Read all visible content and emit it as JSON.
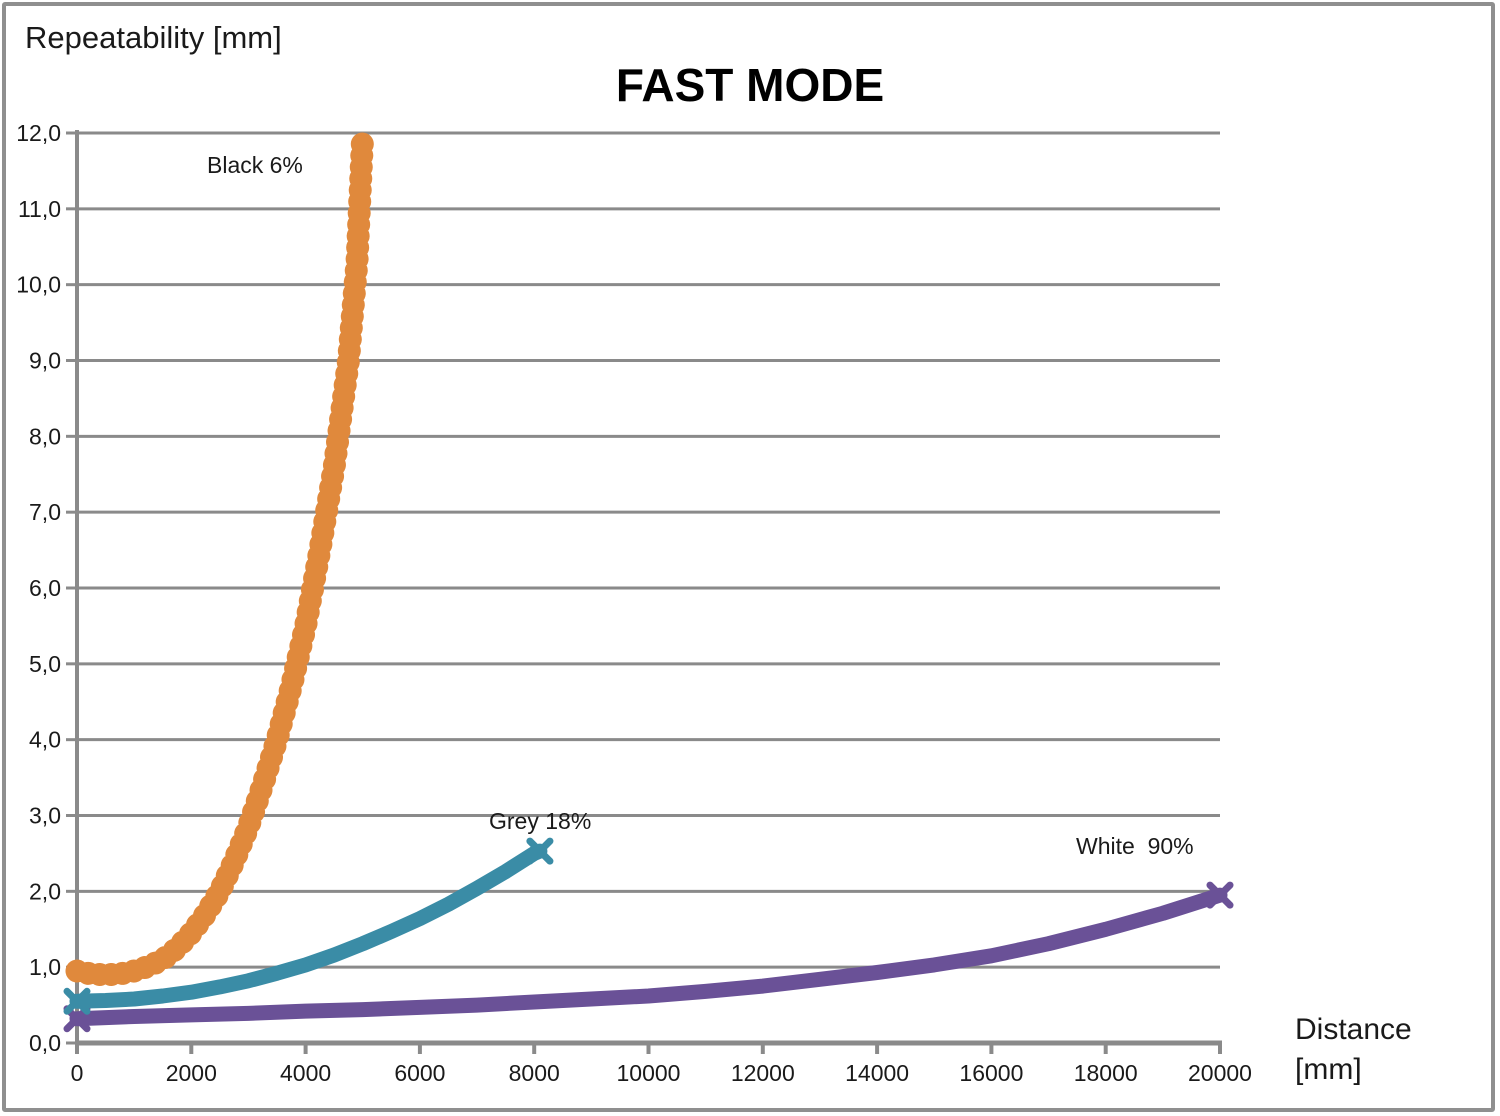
{
  "chart_data": {
    "type": "line",
    "title": "FAST MODE",
    "y_axis_title": "Repeatability [mm]",
    "x_axis_title_line1": "Distance",
    "x_axis_title_line2": "[mm]",
    "xlim": [
      0,
      20000
    ],
    "ylim": [
      0,
      12
    ],
    "x_ticks": [
      0,
      2000,
      4000,
      6000,
      8000,
      10000,
      12000,
      14000,
      16000,
      18000,
      20000
    ],
    "x_tick_labels": [
      "0",
      "2000",
      "4000",
      "6000",
      "8000",
      "10000",
      "12000",
      "14000",
      "16000",
      "18000",
      "20000"
    ],
    "y_ticks": [
      0,
      1,
      2,
      3,
      4,
      5,
      6,
      7,
      8,
      9,
      10,
      11,
      12
    ],
    "y_tick_labels": [
      "0,0",
      "1,0",
      "2,0",
      "3,0",
      "4,0",
      "5,0",
      "6,0",
      "7,0",
      "8,0",
      "9,0",
      "10,0",
      "11,0",
      "12,0"
    ],
    "grid": "horizontal",
    "axis_color": "#8a8a8a",
    "legend_position": "inline-annotations",
    "series": [
      {
        "name": "White  90%",
        "color": "#6a5197",
        "marker": "x",
        "line_style": "solid-thick",
        "points": [
          [
            0,
            0.32
          ],
          [
            1000,
            0.35
          ],
          [
            2000,
            0.37
          ],
          [
            3000,
            0.39
          ],
          [
            4000,
            0.42
          ],
          [
            5000,
            0.44
          ],
          [
            6000,
            0.47
          ],
          [
            7000,
            0.5
          ],
          [
            8000,
            0.54
          ],
          [
            9000,
            0.58
          ],
          [
            10000,
            0.62
          ],
          [
            11000,
            0.68
          ],
          [
            12000,
            0.75
          ],
          [
            13000,
            0.84
          ],
          [
            14000,
            0.93
          ],
          [
            15000,
            1.03
          ],
          [
            16000,
            1.15
          ],
          [
            17000,
            1.31
          ],
          [
            18000,
            1.5
          ],
          [
            19000,
            1.71
          ],
          [
            20000,
            1.95
          ]
        ]
      },
      {
        "name": "Grey 18%",
        "color": "#3a8ca6",
        "marker": "x",
        "line_style": "solid-thick",
        "points": [
          [
            0,
            0.55
          ],
          [
            500,
            0.56
          ],
          [
            1000,
            0.58
          ],
          [
            1500,
            0.62
          ],
          [
            2000,
            0.67
          ],
          [
            2500,
            0.74
          ],
          [
            3000,
            0.82
          ],
          [
            3500,
            0.92
          ],
          [
            4000,
            1.03
          ],
          [
            4500,
            1.16
          ],
          [
            5000,
            1.31
          ],
          [
            5500,
            1.47
          ],
          [
            6000,
            1.64
          ],
          [
            6500,
            1.83
          ],
          [
            7000,
            2.04
          ],
          [
            7500,
            2.26
          ],
          [
            8000,
            2.5
          ],
          [
            8100,
            2.53
          ]
        ]
      },
      {
        "name": "Black 6%",
        "color": "#e0893c",
        "marker": "dot-chain",
        "line_style": "overlapping-dots",
        "points": [
          [
            0,
            0.95
          ],
          [
            250,
            0.91
          ],
          [
            500,
            0.9
          ],
          [
            750,
            0.91
          ],
          [
            1000,
            0.95
          ],
          [
            1250,
            1.01
          ],
          [
            1500,
            1.1
          ],
          [
            1750,
            1.25
          ],
          [
            2000,
            1.45
          ],
          [
            2250,
            1.7
          ],
          [
            2500,
            2.0
          ],
          [
            2750,
            2.4
          ],
          [
            3000,
            2.85
          ],
          [
            3250,
            3.4
          ],
          [
            3500,
            4.0
          ],
          [
            3750,
            4.7
          ],
          [
            4000,
            5.5
          ],
          [
            4250,
            6.5
          ],
          [
            4500,
            7.6
          ],
          [
            4750,
            9.0
          ],
          [
            4900,
            10.3
          ],
          [
            5000,
            12.0
          ]
        ]
      }
    ],
    "annotations": {
      "black_label": "Black 6%",
      "grey_label": "Grey 18%",
      "white_label": "White  90%"
    }
  }
}
